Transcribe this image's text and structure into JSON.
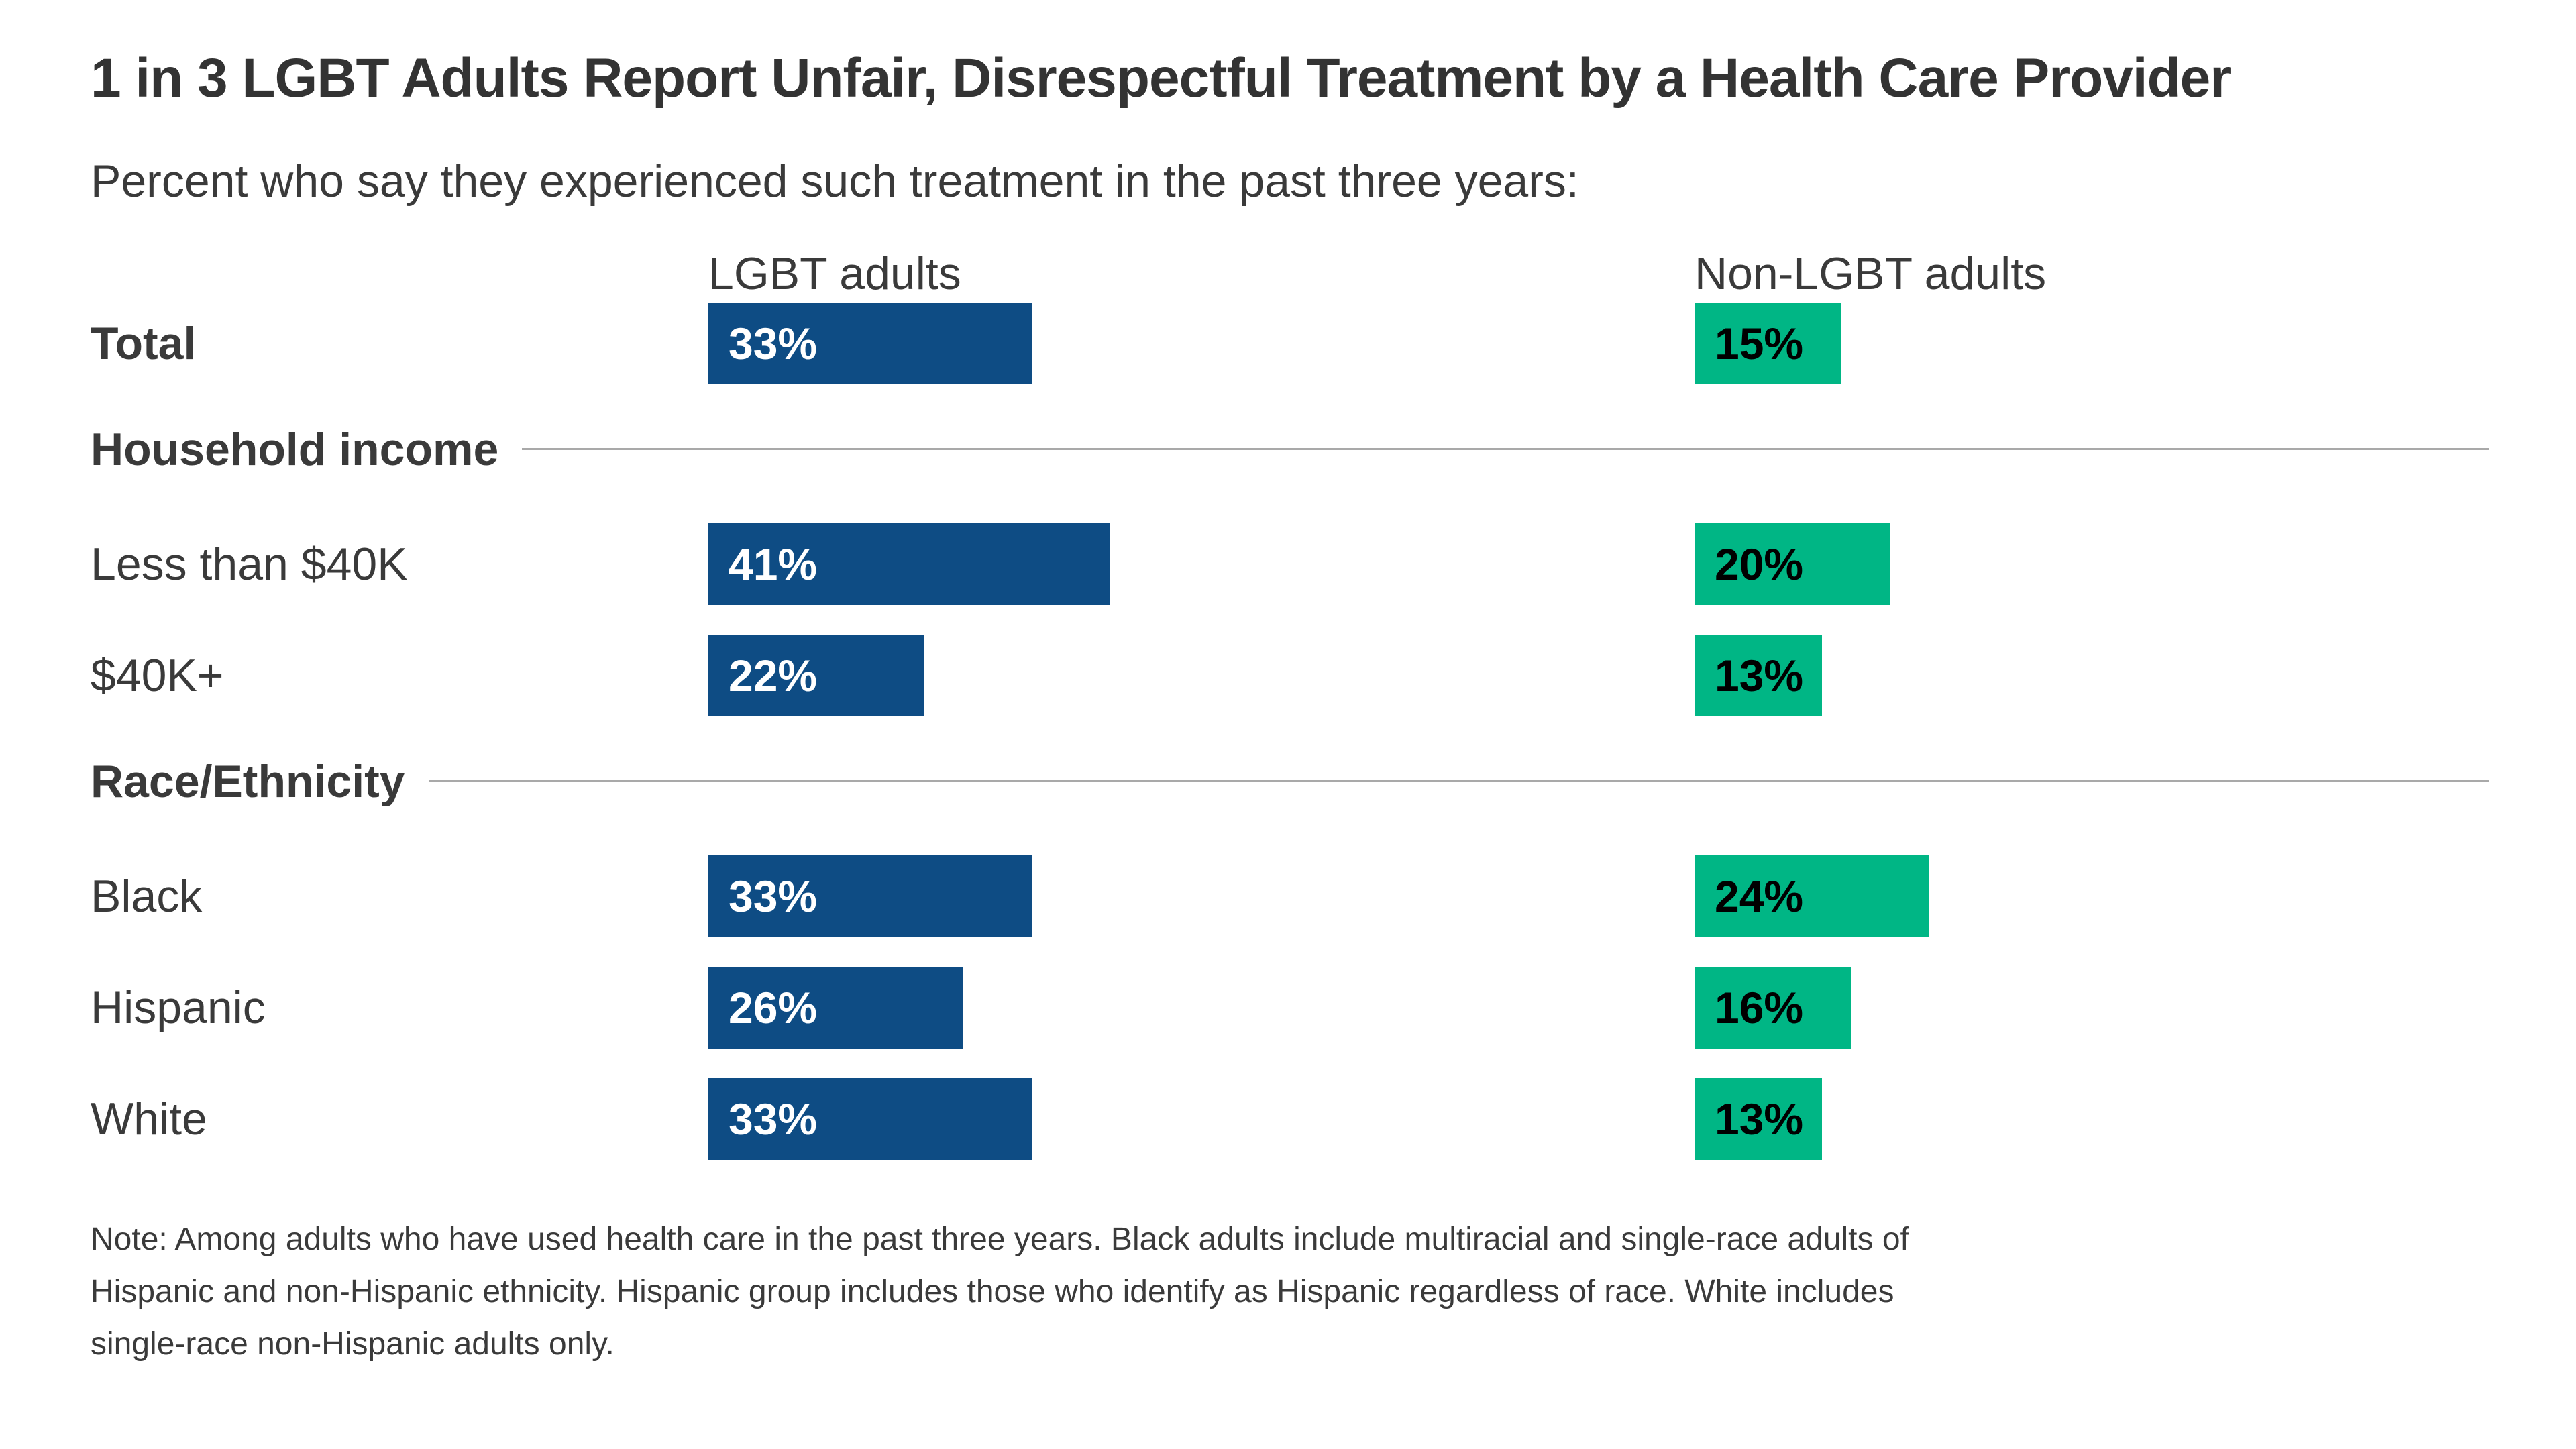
{
  "title": "1 in 3 LGBT Adults Report Unfair, Disrespectful Treatment by a Health Care Provider",
  "subtitle": "Percent who say they experienced such treatment in the past three years:",
  "columns": [
    {
      "label": "LGBT adults"
    },
    {
      "label": "Non-LGBT adults"
    }
  ],
  "colors": {
    "lgbt_bar": "#0E4C84",
    "non_lgbt_bar": "#00B685",
    "bar_label_on_blue": "#FFFFFF",
    "bar_label_on_green": "#000000",
    "section_line": "#A9A9A9",
    "text": "#3A3A3A"
  },
  "rows": [
    {
      "type": "bar",
      "label": "Total",
      "emphasis": true,
      "lgbt": 33,
      "non_lgbt": 15
    },
    {
      "type": "section",
      "label": "Household income"
    },
    {
      "type": "bar",
      "label": "Less than $40K",
      "emphasis": false,
      "lgbt": 41,
      "non_lgbt": 20
    },
    {
      "type": "bar",
      "label": "$40K+",
      "emphasis": false,
      "lgbt": 22,
      "non_lgbt": 13
    },
    {
      "type": "section",
      "label": "Race/Ethnicity"
    },
    {
      "type": "bar",
      "label": "Black",
      "emphasis": false,
      "lgbt": 33,
      "non_lgbt": 24
    },
    {
      "type": "bar",
      "label": "Hispanic",
      "emphasis": false,
      "lgbt": 26,
      "non_lgbt": 16
    },
    {
      "type": "bar",
      "label": "White",
      "emphasis": false,
      "lgbt": 33,
      "non_lgbt": 13
    }
  ],
  "note_lines": [
    "Note: Among adults who have used health care in the past three years. Black adults include multiracial and single-race adults of",
    "Hispanic and non-Hispanic ethnicity. Hispanic group includes those who identify as Hispanic regardless of race. White includes",
    "single-race non-Hispanic adults only."
  ],
  "chart_data": {
    "type": "bar",
    "orientation": "horizontal",
    "title": "1 in 3 LGBT Adults Report Unfair, Disrespectful Treatment by a Health Care Provider",
    "subtitle": "Percent who say they experienced such treatment in the past three years:",
    "categories": [
      "Total",
      "Less than $40K",
      "$40K+",
      "Black",
      "Hispanic",
      "White"
    ],
    "sections": [
      {
        "label": "Household income",
        "categories": [
          "Less than $40K",
          "$40K+"
        ]
      },
      {
        "label": "Race/Ethnicity",
        "categories": [
          "Black",
          "Hispanic",
          "White"
        ]
      }
    ],
    "series": [
      {
        "name": "LGBT adults",
        "color": "#0E4C84",
        "values": [
          33,
          41,
          22,
          33,
          26,
          33
        ]
      },
      {
        "name": "Non-LGBT adults",
        "color": "#00B685",
        "values": [
          15,
          20,
          13,
          24,
          16,
          13
        ]
      }
    ],
    "value_unit": "percent",
    "data_labels": true,
    "grid": false,
    "xlim": [
      0,
      100
    ],
    "legend_position": "column headers above bars",
    "note": "Note: Among adults who have used health care in the past three years. Black adults include multiracial and single-race adults of Hispanic and non-Hispanic ethnicity. Hispanic group includes those who identify as Hispanic regardless of race. White includes single-race non-Hispanic adults only."
  }
}
